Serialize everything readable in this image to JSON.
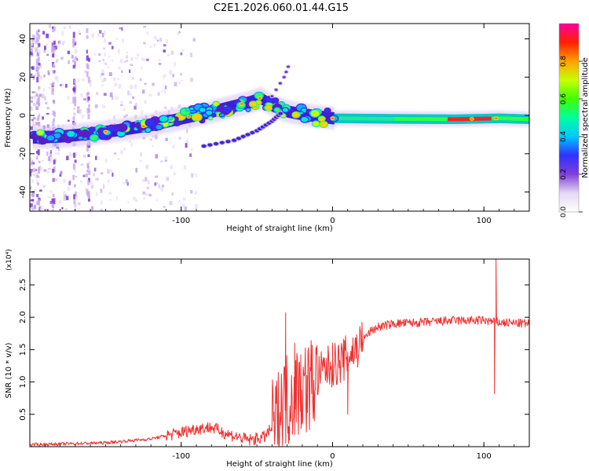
{
  "title": "C2E1.2026.060.01.44.G15",
  "chart_data": [
    {
      "type": "heatmap",
      "name": "spectrogram",
      "xlabel": "Height of straight line (km)",
      "ylabel": "Frequency (Hz)",
      "xlim": [
        -200,
        130
      ],
      "ylim": [
        -50,
        48
      ],
      "x_ticks": [
        -100,
        0,
        100
      ],
      "x_tick_labels": [
        "-100",
        "0",
        "100"
      ],
      "y_ticks": [
        -40,
        -20,
        0,
        20,
        40
      ],
      "y_tick_labels": [
        "-40",
        "-20",
        "0",
        "20",
        "40"
      ],
      "colorbar": {
        "label": "Normalized spectral amplitude",
        "range": [
          0,
          1
        ],
        "ticks": [
          0.0,
          0.2,
          0.4,
          0.6,
          0.8
        ],
        "tick_labels": [
          "0.0",
          "0.2",
          "0.4",
          "0.6",
          "0.8"
        ],
        "colors": [
          "#ffffff",
          "#e6d8f5",
          "#8040d8",
          "#3030ff",
          "#00c8ff",
          "#00ffa0",
          "#40ff00",
          "#c8ff00",
          "#ffa000",
          "#ff2000",
          "#ff00a0"
        ]
      },
      "main_trace": [
        {
          "x": -195,
          "y": -11.5
        },
        {
          "x": -180,
          "y": -11
        },
        {
          "x": -160,
          "y": -9.5
        },
        {
          "x": -140,
          "y": -7.5
        },
        {
          "x": -120,
          "y": -5
        },
        {
          "x": -100,
          "y": -1.5
        },
        {
          "x": -85,
          "y": 1
        },
        {
          "x": -70,
          "y": 4
        },
        {
          "x": -55,
          "y": 7
        },
        {
          "x": -48,
          "y": 9
        },
        {
          "x": -40,
          "y": 5
        },
        {
          "x": -30,
          "y": 2
        },
        {
          "x": -20,
          "y": 0.5
        },
        {
          "x": 0,
          "y": -1.5
        },
        {
          "x": 40,
          "y": -1.8
        },
        {
          "x": 80,
          "y": -2
        },
        {
          "x": 110,
          "y": -1.5
        },
        {
          "x": 130,
          "y": -2
        }
      ],
      "lower_branch": [
        {
          "x": -85,
          "y": -16
        },
        {
          "x": -65,
          "y": -13
        },
        {
          "x": -50,
          "y": -8
        },
        {
          "x": -40,
          "y": -3
        },
        {
          "x": -33,
          "y": 2
        }
      ],
      "upper_branch": [
        {
          "x": -40,
          "y": 10
        },
        {
          "x": -32,
          "y": 20
        },
        {
          "x": -28,
          "y": 28
        }
      ]
    },
    {
      "type": "line",
      "name": "snr",
      "xlabel": "Height of straight line (km)",
      "ylabel": "SNR (10 * v/v)",
      "multiplier_label": "(x10⁴)",
      "xlim": [
        -200,
        130
      ],
      "ylim": [
        0,
        2.9
      ],
      "x_ticks": [
        -100,
        0,
        100
      ],
      "x_tick_labels": [
        "-100",
        "0",
        "100"
      ],
      "y_ticks": [
        0.5,
        1.0,
        1.5,
        2.0,
        2.5
      ],
      "y_tick_labels": [
        "0.5",
        "1.0",
        "1.5",
        "2.0",
        "2.5"
      ],
      "line_color": "#f03030",
      "series": [
        {
          "name": "SNR",
          "points": [
            {
              "x": -200,
              "y": 0.03
            },
            {
              "x": -150,
              "y": 0.06
            },
            {
              "x": -120,
              "y": 0.12
            },
            {
              "x": -100,
              "y": 0.22
            },
            {
              "x": -90,
              "y": 0.28
            },
            {
              "x": -80,
              "y": 0.3
            },
            {
              "x": -70,
              "y": 0.2
            },
            {
              "x": -55,
              "y": 0.1
            },
            {
              "x": -45,
              "y": 0.15
            },
            {
              "x": -38,
              "y": 0.35
            },
            {
              "x": -33,
              "y": 0.65
            },
            {
              "x": -28,
              "y": 0.8
            },
            {
              "x": -20,
              "y": 0.9
            },
            {
              "x": -12,
              "y": 1.0
            },
            {
              "x": -5,
              "y": 1.2
            },
            {
              "x": 0,
              "y": 1.25
            },
            {
              "x": 5,
              "y": 1.3
            },
            {
              "x": 10,
              "y": 1.4
            },
            {
              "x": 15,
              "y": 1.5
            },
            {
              "x": 20,
              "y": 1.65
            },
            {
              "x": 25,
              "y": 1.78
            },
            {
              "x": 30,
              "y": 1.85
            },
            {
              "x": 40,
              "y": 1.9
            },
            {
              "x": 60,
              "y": 1.92
            },
            {
              "x": 80,
              "y": 1.95
            },
            {
              "x": 100,
              "y": 1.95
            },
            {
              "x": 110,
              "y": 1.92
            },
            {
              "x": 130,
              "y": 1.9
            }
          ]
        }
      ],
      "spikes": [
        {
          "x": -31,
          "y": 2.07
        },
        {
          "x": -29,
          "y": 0.05
        },
        {
          "x": -25,
          "y": 1.6
        },
        {
          "x": -21,
          "y": 1.42
        },
        {
          "x": 0,
          "y": 1.6
        },
        {
          "x": 10,
          "y": 0.5
        },
        {
          "x": 107,
          "y": 0.82
        },
        {
          "x": 108,
          "y": 2.9
        }
      ]
    }
  ]
}
